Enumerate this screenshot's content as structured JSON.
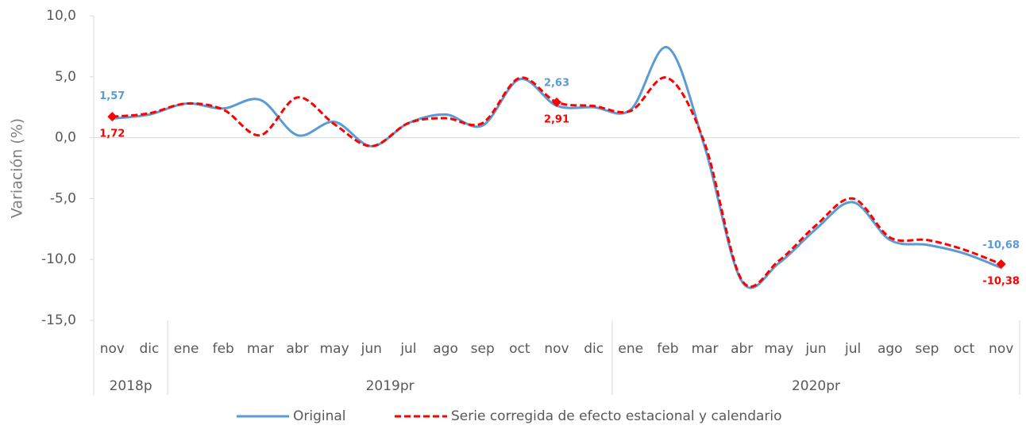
{
  "chart_data": {
    "type": "line",
    "y_label": "Variación (%)",
    "groups": [
      {
        "name": "2018p",
        "categories": [
          "nov",
          "dic"
        ]
      },
      {
        "name": "2019pr",
        "categories": [
          "ene",
          "feb",
          "mar",
          "abr",
          "may",
          "jun",
          "jul",
          "ago",
          "sep",
          "oct",
          "nov",
          "dic"
        ]
      },
      {
        "name": "2020pr",
        "categories": [
          "ene",
          "feb",
          "mar",
          "abr",
          "may",
          "jun",
          "jul",
          "ago",
          "sep",
          "oct",
          "nov"
        ]
      }
    ],
    "ylim": [
      -15,
      10
    ],
    "yticks": [
      {
        "value": -15,
        "label": "-15,0"
      },
      {
        "value": -10,
        "label": "-10,0"
      },
      {
        "value": -5,
        "label": "-5,0"
      },
      {
        "value": 0,
        "label": "0,0"
      },
      {
        "value": 5,
        "label": "5,0"
      },
      {
        "value": 10,
        "label": "10,0"
      }
    ],
    "grid": false,
    "legend": "bottom",
    "series": [
      {
        "name": "Original",
        "color": "#5b9bd5",
        "dashed": false,
        "marker": null,
        "values": [
          1.57,
          1.9,
          2.8,
          2.4,
          3.1,
          0.2,
          1.3,
          -0.7,
          1.2,
          1.9,
          1.0,
          4.8,
          2.63,
          2.5,
          2.3,
          7.4,
          -0.8,
          -11.8,
          -10.3,
          -7.5,
          -5.3,
          -8.4,
          -8.8,
          -9.5,
          -10.68
        ],
        "value_labels": [
          "1,57",
          null,
          null,
          null,
          null,
          null,
          null,
          null,
          null,
          null,
          null,
          null,
          "2,63",
          null,
          null,
          null,
          null,
          null,
          null,
          null,
          null,
          null,
          null,
          null,
          "-10,68"
        ]
      },
      {
        "name": "Serie corregida de efecto estacional y calendario",
        "color": "#ff0000",
        "dashed": true,
        "marker": "diamond",
        "values": [
          1.72,
          2.0,
          2.8,
          2.3,
          0.2,
          3.3,
          1.1,
          -0.7,
          1.2,
          1.6,
          1.2,
          4.9,
          2.91,
          2.6,
          2.2,
          4.9,
          -0.5,
          -11.7,
          -10.1,
          -7.2,
          -5.0,
          -8.2,
          -8.4,
          -9.2,
          -10.38
        ],
        "value_labels": [
          "1,72",
          null,
          null,
          null,
          null,
          null,
          null,
          null,
          null,
          null,
          null,
          null,
          "2,91",
          null,
          null,
          null,
          null,
          null,
          null,
          null,
          null,
          null,
          null,
          null,
          "-10,38"
        ]
      }
    ]
  }
}
